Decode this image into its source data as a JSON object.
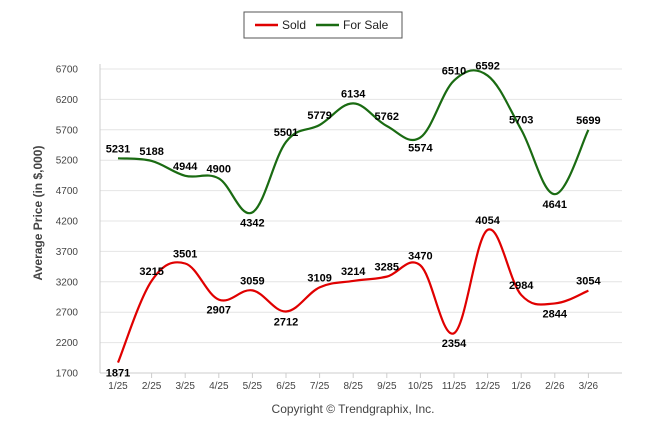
{
  "chart_data": {
    "type": "line",
    "title": "",
    "xlabel": "",
    "ylabel": "Average Price (in $,000)",
    "categories": [
      "1/25",
      "2/25",
      "3/25",
      "4/25",
      "5/25",
      "6/25",
      "7/25",
      "8/25",
      "9/25",
      "10/25",
      "11/25",
      "12/25",
      "1/26",
      "2/26",
      "3/26"
    ],
    "ylim": [
      1700,
      6800
    ],
    "yticks": [
      1700,
      2200,
      2700,
      3200,
      3700,
      4200,
      4700,
      5200,
      5700,
      6200,
      6700
    ],
    "legend_position": "top-center",
    "series": [
      {
        "name": "Sold",
        "color": "#e00000",
        "values": [
          1871,
          3215,
          3501,
          2907,
          3059,
          2712,
          3109,
          3214,
          3285,
          3470,
          2354,
          4054,
          2984,
          2844,
          3054
        ]
      },
      {
        "name": "For Sale",
        "color": "#1a6b12",
        "values": [
          5231,
          5188,
          4944,
          4900,
          4342,
          5501,
          5779,
          6134,
          5762,
          5574,
          6510,
          6592,
          5703,
          4641,
          5699
        ]
      }
    ],
    "copyright": "Copyright © Trendgraphix, Inc."
  }
}
